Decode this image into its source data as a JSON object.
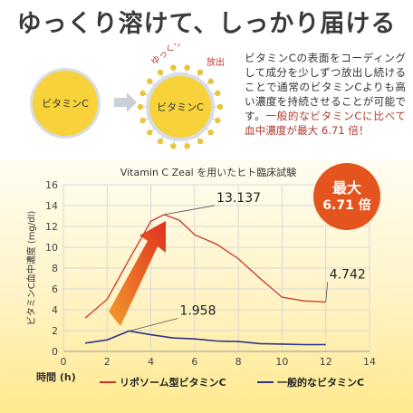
{
  "headline": "ゆっくり溶けて、しっかり届ける",
  "diagram": {
    "label_left": "ビタミンC",
    "label_right": "ビタミンC",
    "tag_slow": "ゆっくり",
    "tag_release": "放出",
    "colors": {
      "core": "#f7d23a",
      "dots": "#e9c53a",
      "ring": "#d8dde3",
      "arrow": "#c9d0d8"
    }
  },
  "description": {
    "normal": "ビタミンCの表面をコーディングして成分を少しずつ放出し続けることで通常のビタミンCよりも高い濃度を持続させることが可能です。",
    "highlight": "一般的なビタミンCに比べて血中濃度が最大 6.71 倍！"
  },
  "badge": {
    "line1": "最大",
    "line2": "6.71 倍"
  },
  "chart_data": {
    "type": "line",
    "title": "Vitamin C Zeal を用いたヒト臨床試験",
    "xlabel": "時間 (h)",
    "ylabel": "ビタミンC血中濃度 (mg/dl)",
    "xlim": [
      0,
      14
    ],
    "ylim": [
      0,
      16
    ],
    "xticks": [
      "0",
      "2",
      "4",
      "6",
      "8",
      "10",
      "12",
      "14"
    ],
    "yticks": [
      "0",
      "2",
      "4",
      "6",
      "8",
      "10",
      "12",
      "14",
      "16"
    ],
    "grid": true,
    "legend_position": "bottom",
    "series": [
      {
        "name": "リポソーム型ビタミンC",
        "color": "#c9362b",
        "x": [
          1,
          2,
          3,
          4,
          4.6,
          5.3,
          6,
          7,
          8,
          9,
          10,
          11,
          12
        ],
        "y": [
          3.2,
          5.0,
          8.8,
          12.5,
          13.137,
          12.6,
          11.2,
          10.3,
          8.9,
          7.0,
          5.2,
          4.85,
          4.742
        ]
      },
      {
        "name": "一般的なビタミンC",
        "color": "#2c3486",
        "x": [
          1,
          2,
          3,
          4,
          5,
          6,
          7,
          8,
          9,
          10,
          11,
          12
        ],
        "y": [
          0.8,
          1.1,
          1.958,
          1.6,
          1.3,
          1.2,
          1.0,
          0.95,
          0.75,
          0.7,
          0.65,
          0.65
        ]
      }
    ],
    "annotations": [
      {
        "text": "13.137",
        "x": 4.6,
        "y": 13.137
      },
      {
        "text": "4.742",
        "x": 12,
        "y": 4.742
      },
      {
        "text": "1.958",
        "x": 3,
        "y": 1.958
      }
    ]
  }
}
